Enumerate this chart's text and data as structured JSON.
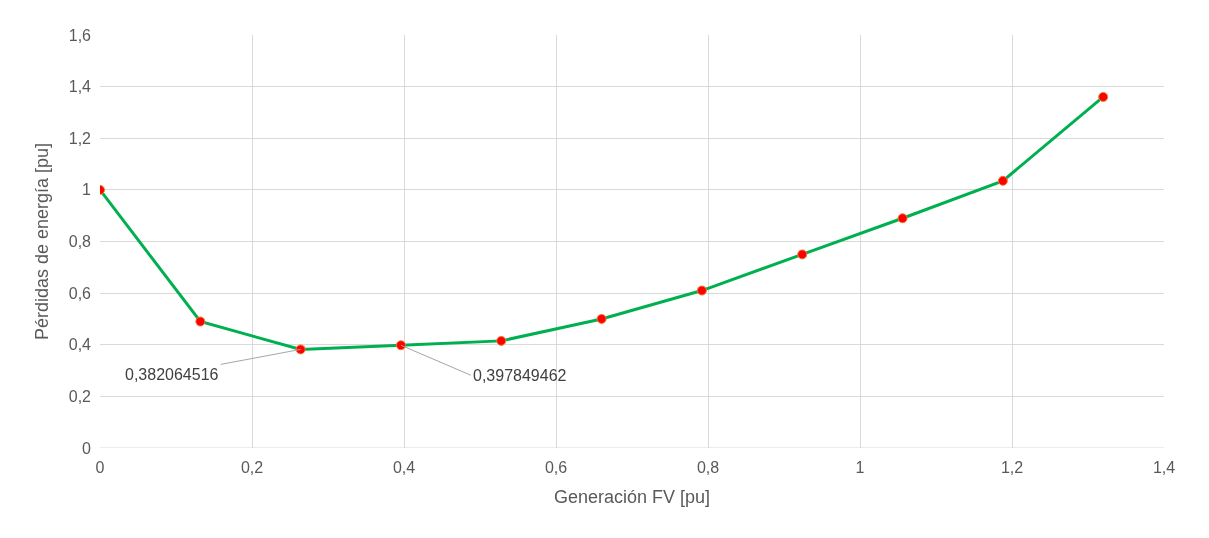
{
  "chart_data": {
    "type": "line",
    "xlabel": "Generación FV [pu]",
    "ylabel": "Pérdidas de energía [pu]",
    "x": [
      0,
      0.132,
      0.264,
      0.396,
      0.528,
      0.66,
      0.792,
      0.924,
      1.056,
      1.188,
      1.32
    ],
    "series": [
      {
        "color": "#00b050",
        "values": [
          1.0,
          0.49,
          0.382,
          0.398,
          0.415,
          0.5,
          0.61,
          0.75,
          0.89,
          1.035,
          1.36
        ]
      }
    ],
    "xlim": [
      0,
      1.4
    ],
    "ylim": [
      0,
      1.6
    ],
    "xticks": [
      0,
      {
        "value": 0.2,
        "label": "0,2"
      },
      {
        "value": 0.4,
        "label": "0,4"
      },
      {
        "value": 0.6,
        "label": "0,6"
      },
      {
        "value": 0.8,
        "label": "0,8"
      },
      1,
      {
        "value": 1.2,
        "label": "1,2"
      },
      {
        "value": 1.4,
        "label": "1,4"
      }
    ],
    "yticks": [
      0,
      {
        "value": 0.2,
        "label": "0,2"
      },
      {
        "value": 0.4,
        "label": "0,4"
      },
      {
        "value": 0.6,
        "label": "0,6"
      },
      {
        "value": 0.8,
        "label": "0,8"
      },
      1,
      {
        "value": 1.2,
        "label": "1,2"
      },
      {
        "value": 1.4,
        "label": "1,4"
      },
      {
        "value": 1.6,
        "label": "1,6"
      }
    ],
    "annotations": [
      {
        "text": "0,382064516",
        "x": 0.264,
        "y": 0.382
      },
      {
        "text": "0,397849462",
        "x": 0.396,
        "y": 0.398
      }
    ],
    "grid": true,
    "marker": "circle",
    "line_style": "solid",
    "legend": false
  }
}
